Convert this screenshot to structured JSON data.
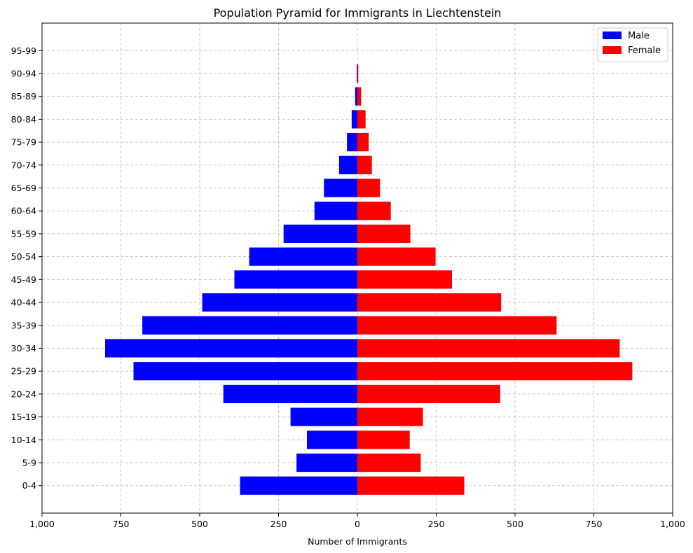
{
  "chart_data": {
    "type": "bar",
    "orientation": "horizontal-pyramid",
    "title": "Population Pyramid for Immigrants in Liechtenstein",
    "xlabel": "Number of Immigrants",
    "ylabel": "",
    "xlim": [
      -1000,
      1000
    ],
    "x_ticks": [
      -1000,
      -750,
      -500,
      -250,
      0,
      250,
      500,
      750,
      1000
    ],
    "x_tick_labels": [
      "1,000",
      "750",
      "500",
      "250",
      "0",
      "250",
      "500",
      "750",
      "1,000"
    ],
    "categories": [
      "0-4",
      "5-9",
      "10-14",
      "15-19",
      "20-24",
      "25-29",
      "30-34",
      "35-39",
      "40-44",
      "45-49",
      "50-54",
      "55-59",
      "60-64",
      "65-69",
      "70-74",
      "75-79",
      "80-84",
      "85-89",
      "90-94",
      "95-99"
    ],
    "series": [
      {
        "name": "Male",
        "color": "#0000ff",
        "values": [
          372,
          193,
          160,
          212,
          425,
          710,
          800,
          682,
          492,
          390,
          343,
          234,
          136,
          106,
          58,
          33,
          18,
          7,
          2,
          0
        ]
      },
      {
        "name": "Female",
        "color": "#ff0000",
        "values": [
          339,
          201,
          166,
          208,
          453,
          872,
          832,
          632,
          456,
          300,
          248,
          168,
          106,
          72,
          46,
          36,
          26,
          12,
          3,
          0
        ]
      }
    ],
    "grid": true,
    "legend_position": "top-right"
  }
}
